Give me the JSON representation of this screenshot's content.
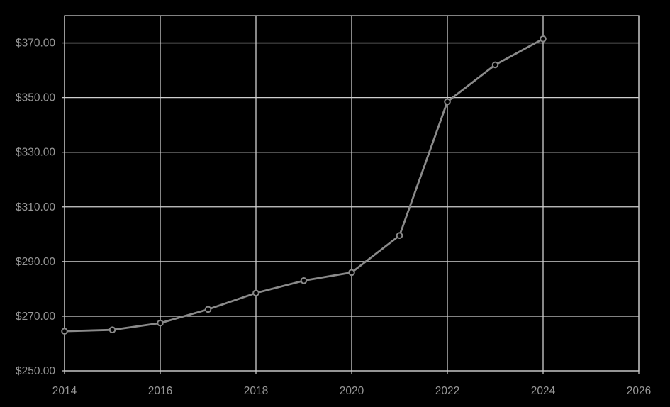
{
  "chart_data": {
    "type": "line",
    "x": [
      2014,
      2015,
      2016,
      2017,
      2018,
      2019,
      2020,
      2021,
      2022,
      2023,
      2024
    ],
    "values": [
      264.5,
      265.0,
      267.5,
      272.5,
      278.5,
      283.0,
      286.0,
      299.5,
      348.5,
      362.0,
      371.5
    ],
    "x_axis": {
      "min": 2014,
      "max": 2026,
      "ticks": [
        {
          "value": 2014,
          "label": "2014"
        },
        {
          "value": 2016,
          "label": "2016"
        },
        {
          "value": 2018,
          "label": "2018"
        },
        {
          "value": 2020,
          "label": "2020"
        },
        {
          "value": 2022,
          "label": "2022"
        },
        {
          "value": 2024,
          "label": "2024"
        },
        {
          "value": 2026,
          "label": "2026"
        }
      ]
    },
    "y_axis": {
      "min": 250,
      "max": 380,
      "ticks": [
        {
          "value": 250,
          "label": "$250.00"
        },
        {
          "value": 270,
          "label": "$270.00"
        },
        {
          "value": 290,
          "label": "$290.00"
        },
        {
          "value": 310,
          "label": "$310.00"
        },
        {
          "value": 330,
          "label": "$330.00"
        },
        {
          "value": 350,
          "label": "$350.00"
        },
        {
          "value": 370,
          "label": "$370.00"
        }
      ]
    },
    "grid": true,
    "legend_position": "none",
    "marker_shape": "circle"
  },
  "colors": {
    "background": "#000000",
    "gridline": "#cfcfcf",
    "axis_line": "#c8c8c8",
    "series_line": "#8a8a8a",
    "marker_fill": "#000000",
    "marker_stroke": "#8a8a8a",
    "tick_label": "#979797"
  }
}
